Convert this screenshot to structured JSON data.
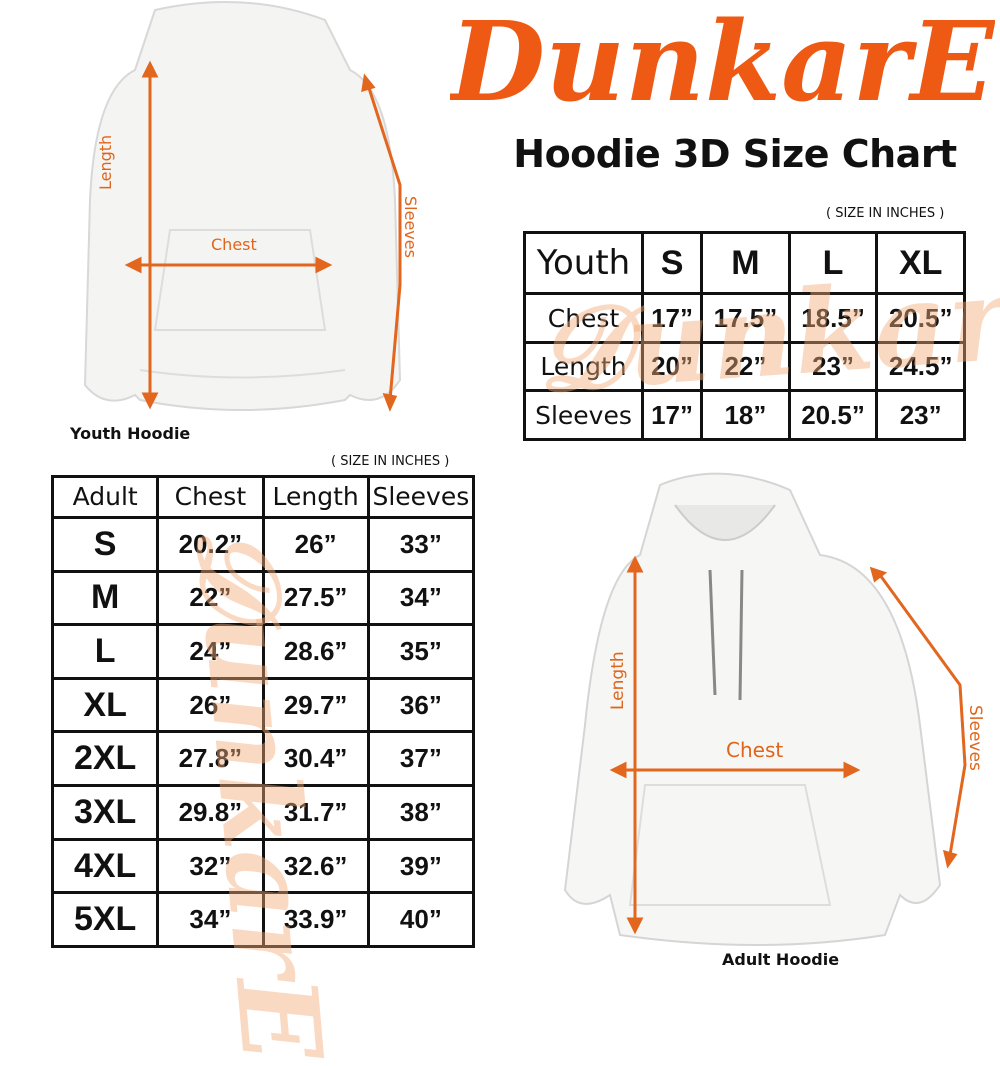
{
  "brand": {
    "logo_text": "DunkarE",
    "color": "#EE5A14"
  },
  "title": "Hoodie 3D Size Chart",
  "accent_color": "#E2661E",
  "youth_hoodie": {
    "caption": "Youth Hoodie",
    "labels": {
      "length": "Length",
      "chest": "Chest",
      "sleeves": "Sleeves"
    }
  },
  "adult_hoodie": {
    "caption": "Adult Hoodie",
    "labels": {
      "length": "Length",
      "chest": "Chest",
      "sleeves": "Sleeves"
    }
  },
  "youth_table": {
    "unit_note": "( SIZE IN INCHES )",
    "header": [
      "Youth",
      "S",
      "M",
      "L",
      "XL"
    ],
    "rows": [
      [
        "Chest",
        "17”",
        "17.5”",
        "18.5”",
        "20.5”"
      ],
      [
        "Length",
        "20”",
        "22”",
        "23”",
        "24.5”"
      ],
      [
        "Sleeves",
        "17”",
        "18”",
        "20.5”",
        "23”"
      ]
    ]
  },
  "adult_table": {
    "unit_note": "( SIZE IN INCHES )",
    "header": [
      "Adult",
      "Chest",
      "Length",
      "Sleeves"
    ],
    "rows": [
      [
        "S",
        "20.2”",
        "26”",
        "33”"
      ],
      [
        "M",
        "22”",
        "27.5”",
        "34”"
      ],
      [
        "L",
        "24”",
        "28.6”",
        "35”"
      ],
      [
        "XL",
        "26”",
        "29.7”",
        "36”"
      ],
      [
        "2XL",
        "27.8”",
        "30.4”",
        "37”"
      ],
      [
        "3XL",
        "29.8”",
        "31.7”",
        "38”"
      ],
      [
        "4XL",
        "32”",
        "32.6”",
        "39”"
      ],
      [
        "5XL",
        "34”",
        "33.9”",
        "40”"
      ]
    ]
  }
}
